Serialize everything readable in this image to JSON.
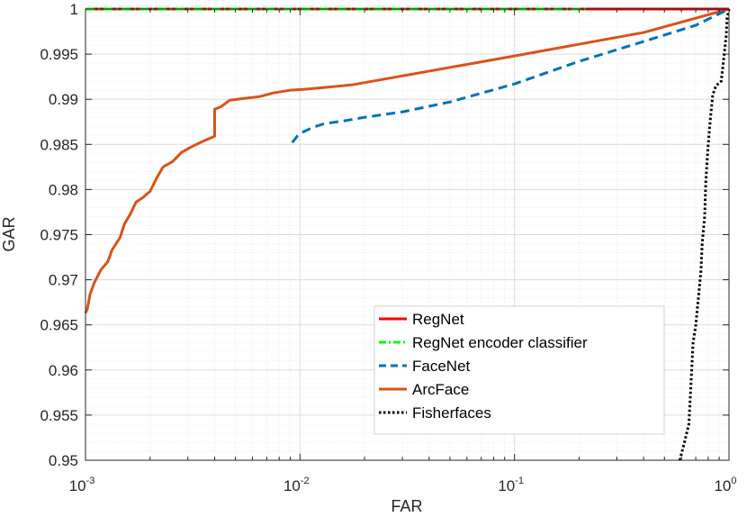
{
  "chart_data": {
    "type": "line",
    "title": "",
    "xlabel": "FAR",
    "ylabel": "GAR",
    "xscale": "log",
    "xlim": [
      0.001,
      1
    ],
    "ylim": [
      0.95,
      1
    ],
    "grid": true,
    "minor_grid": true,
    "legend_position": "bottom-right",
    "x_ticks": [
      {
        "base": "10",
        "exp": "-3",
        "value": 0.001
      },
      {
        "base": "10",
        "exp": "-2",
        "value": 0.01
      },
      {
        "base": "10",
        "exp": "-1",
        "value": 0.1
      },
      {
        "base": "10",
        "exp": "0",
        "value": 1
      }
    ],
    "y_ticks": [
      "0.95",
      "0.955",
      "0.96",
      "0.965",
      "0.97",
      "0.975",
      "0.98",
      "0.985",
      "0.99",
      "0.995",
      "1"
    ],
    "series": [
      {
        "name": "RegNet",
        "color": "#ff0000",
        "style": "solid",
        "points": [
          [
            0.001,
            1.0
          ],
          [
            1.0,
            1.0
          ]
        ]
      },
      {
        "name": "RegNet encoder classifier",
        "color": "#00ff00",
        "style": "dashdot",
        "points": [
          [
            0.001,
            1.0
          ],
          [
            0.215,
            1.0
          ]
        ]
      },
      {
        "name": "FaceNet",
        "color": "#0072bd",
        "style": "dashed",
        "points": [
          [
            0.0092,
            0.9852
          ],
          [
            0.0097,
            0.9859
          ],
          [
            0.0104,
            0.9864
          ],
          [
            0.0115,
            0.9869
          ],
          [
            0.013,
            0.9873
          ],
          [
            0.016,
            0.9876
          ],
          [
            0.02,
            0.988
          ],
          [
            0.03,
            0.9886
          ],
          [
            0.05,
            0.9897
          ],
          [
            0.1,
            0.9917
          ],
          [
            0.2,
            0.9942
          ],
          [
            0.4,
            0.9964
          ],
          [
            0.7,
            0.9982
          ],
          [
            1.0,
            1.0
          ]
        ]
      },
      {
        "name": "ArcFace",
        "color": "#d95319",
        "style": "solid",
        "points": [
          [
            0.001,
            0.9663
          ],
          [
            0.00102,
            0.9668
          ],
          [
            0.00105,
            0.9684
          ],
          [
            0.0011,
            0.9697
          ],
          [
            0.00118,
            0.9711
          ],
          [
            0.00127,
            0.972
          ],
          [
            0.00133,
            0.9733
          ],
          [
            0.00145,
            0.9747
          ],
          [
            0.00152,
            0.9762
          ],
          [
            0.00162,
            0.9773
          ],
          [
            0.00172,
            0.9786
          ],
          [
            0.00185,
            0.9791
          ],
          [
            0.002,
            0.9798
          ],
          [
            0.00215,
            0.9813
          ],
          [
            0.0023,
            0.9825
          ],
          [
            0.00255,
            0.9831
          ],
          [
            0.0028,
            0.9841
          ],
          [
            0.0031,
            0.9847
          ],
          [
            0.0035,
            0.9853
          ],
          [
            0.004,
            0.9859
          ],
          [
            0.004,
            0.9889
          ],
          [
            0.0043,
            0.9892
          ],
          [
            0.0047,
            0.9899
          ],
          [
            0.0055,
            0.9901
          ],
          [
            0.0065,
            0.9903
          ],
          [
            0.0075,
            0.9907
          ],
          [
            0.009,
            0.991
          ],
          [
            0.0105,
            0.9911
          ],
          [
            0.013,
            0.9913
          ],
          [
            0.0175,
            0.9916
          ],
          [
            0.1,
            0.9948
          ],
          [
            0.4,
            0.9974
          ],
          [
            1.0,
            1.0
          ]
        ]
      },
      {
        "name": "Fisherfaces",
        "color": "#000000",
        "style": "dotted",
        "points": [
          [
            0.59,
            0.95
          ],
          [
            0.62,
            0.952
          ],
          [
            0.65,
            0.954
          ],
          [
            0.66,
            0.957
          ],
          [
            0.67,
            0.96
          ],
          [
            0.68,
            0.963
          ],
          [
            0.7,
            0.965
          ],
          [
            0.72,
            0.968
          ],
          [
            0.74,
            0.971
          ],
          [
            0.75,
            0.974
          ],
          [
            0.77,
            0.977
          ],
          [
            0.78,
            0.981
          ],
          [
            0.8,
            0.985
          ],
          [
            0.82,
            0.988
          ],
          [
            0.84,
            0.9905
          ],
          [
            0.87,
            0.9915
          ],
          [
            0.92,
            0.992
          ],
          [
            0.93,
            0.993
          ],
          [
            0.95,
            0.995
          ],
          [
            0.97,
            0.997
          ],
          [
            0.98,
            0.999
          ],
          [
            1.0,
            1.0
          ]
        ]
      }
    ]
  }
}
